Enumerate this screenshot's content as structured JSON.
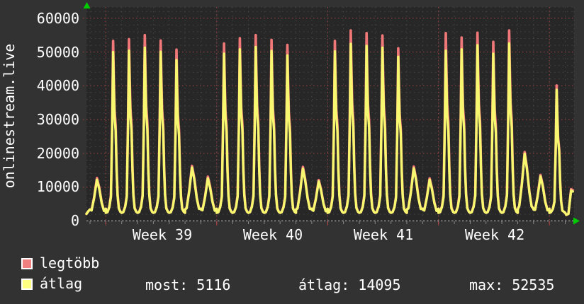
{
  "chart": {
    "title": "onlinestream.live",
    "y_axis": {
      "labels": [
        "0",
        "10000",
        "20000",
        "30000",
        "40000",
        "50000",
        "60000"
      ]
    },
    "x_axis": {
      "week_labels": [
        "Week 39",
        "Week 40",
        "Week 41",
        "Week 42"
      ]
    },
    "legend": [
      {
        "label": "legtöbb",
        "color": "#f08080"
      },
      {
        "label": "átlag",
        "color": "#ffff80"
      }
    ],
    "stats_row": {
      "most": "most: 5116",
      "atlag": "átlag: 14095",
      "max": "max: 52535"
    },
    "colors": {
      "bg_outer": "#323232",
      "bg_plot": "#272727",
      "grid_minor": "#454545",
      "grid_major_red": "#a84444",
      "axis": "#cccccc",
      "tick_gray": "#8a8a8a",
      "tick_red": "#b04040",
      "arrow_green": "#00cc00",
      "text": "#ffffff"
    }
  },
  "chart_data": {
    "type": "line",
    "title": "onlinestream.live",
    "xlabel": "",
    "ylabel": "",
    "ylim": [
      0,
      63000
    ],
    "grid": true,
    "legend_position": "bottom-left",
    "x_unit": "day",
    "week_labels": [
      "Week 39",
      "Week 40",
      "Week 41",
      "Week 42"
    ],
    "week_boundary_day_indices": [
      1,
      8,
      15,
      22,
      29
    ],
    "y_ticks": [
      0,
      10000,
      20000,
      30000,
      40000,
      50000,
      60000
    ],
    "series": [
      {
        "name": "legtöbb",
        "role": "daily-maximum",
        "color": "#f07878"
      },
      {
        "name": "átlag",
        "role": "daily-average",
        "color": "#f8f870"
      }
    ],
    "days": [
      {
        "kind": "weekend",
        "avg": 12200,
        "max": 12700
      },
      {
        "kind": "weekday",
        "avg": 50000,
        "max": 53300
      },
      {
        "kind": "weekday",
        "avg": 50400,
        "max": 53800
      },
      {
        "kind": "weekday",
        "avg": 51300,
        "max": 55000
      },
      {
        "kind": "weekday",
        "avg": 50100,
        "max": 53400
      },
      {
        "kind": "weekday",
        "avg": 47600,
        "max": 50700
      },
      {
        "kind": "weekend",
        "avg": 15800,
        "max": 16300
      },
      {
        "kind": "weekend",
        "avg": 12600,
        "max": 13100
      },
      {
        "kind": "weekday",
        "avg": 49500,
        "max": 52500
      },
      {
        "kind": "weekday",
        "avg": 50800,
        "max": 54100
      },
      {
        "kind": "weekday",
        "avg": 51500,
        "max": 55000
      },
      {
        "kind": "weekday",
        "avg": 50300,
        "max": 53600
      },
      {
        "kind": "weekday",
        "avg": 49000,
        "max": 52100
      },
      {
        "kind": "weekend",
        "avg": 15500,
        "max": 16000
      },
      {
        "kind": "weekend",
        "avg": 11700,
        "max": 12100
      },
      {
        "kind": "weekday",
        "avg": 50200,
        "max": 53300
      },
      {
        "kind": "weekday",
        "avg": 52400,
        "max": 56400
      },
      {
        "kind": "weekday",
        "avg": 51800,
        "max": 55600
      },
      {
        "kind": "weekday",
        "avg": 51300,
        "max": 54900
      },
      {
        "kind": "weekday",
        "avg": 48600,
        "max": 51100
      },
      {
        "kind": "weekend",
        "avg": 15600,
        "max": 16100
      },
      {
        "kind": "weekend",
        "avg": 12200,
        "max": 12600
      },
      {
        "kind": "weekday",
        "avg": 50400,
        "max": 55600
      },
      {
        "kind": "weekday",
        "avg": 50800,
        "max": 54300
      },
      {
        "kind": "weekday",
        "avg": 52000,
        "max": 55700
      },
      {
        "kind": "weekday",
        "avg": 49500,
        "max": 53000
      },
      {
        "kind": "weekday",
        "avg": 52535,
        "max": 56400
      },
      {
        "kind": "weekend",
        "avg": 19900,
        "max": 20400
      },
      {
        "kind": "weekend",
        "avg": 13200,
        "max": 13600
      },
      {
        "kind": "weekday",
        "avg": 38800,
        "max": 40100
      }
    ],
    "tail_current_spike": {
      "avg": 9000,
      "max": 9400
    },
    "stats": {
      "most": 5116,
      "atlag": 14095,
      "max": 52535
    }
  }
}
